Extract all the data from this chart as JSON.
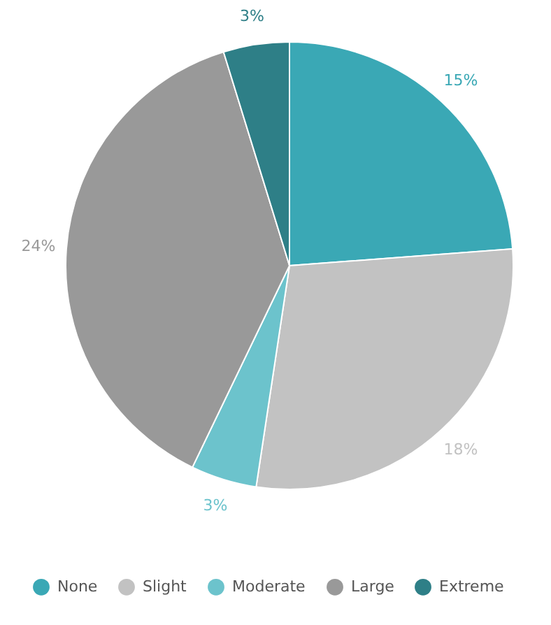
{
  "chart_data": {
    "type": "pie",
    "categories": [
      "None",
      "Slight",
      "Moderate",
      "Large",
      "Extreme"
    ],
    "values": [
      15,
      18,
      3,
      24,
      3
    ],
    "value_labels": [
      "15%",
      "18%",
      "3%",
      "24%",
      "3%"
    ],
    "colors": [
      "#3aa8b5",
      "#c2c2c2",
      "#6cc3cc",
      "#999999",
      "#2e7f87"
    ],
    "legend": "bottom"
  }
}
